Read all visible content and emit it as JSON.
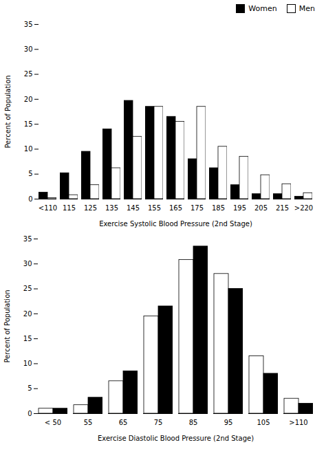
{
  "chart_data": [
    {
      "type": "bar",
      "categories": [
        "<110",
        "115",
        "125",
        "135",
        "145",
        "155",
        "165",
        "175",
        "185",
        "195",
        "205",
        "215",
        ">220"
      ],
      "series": [
        {
          "name": "Women",
          "color": "#000000",
          "values": [
            1.3,
            5.2,
            9.5,
            14.0,
            19.7,
            18.5,
            16.5,
            8.0,
            6.2,
            2.8,
            1.0,
            1.0,
            0.5
          ]
        },
        {
          "name": "Men",
          "color": "#ffffff",
          "values": [
            0.2,
            0.8,
            2.8,
            6.2,
            12.5,
            18.5,
            15.5,
            18.5,
            10.5,
            8.5,
            4.8,
            3.0,
            1.2
          ]
        }
      ],
      "xlabel": "Exercise Systolic Blood Pressure (2nd Stage)",
      "ylabel": "Percent of Population",
      "ylim": [
        0,
        35
      ],
      "yticks": [
        0,
        5,
        10,
        15,
        20,
        25,
        30,
        35
      ],
      "grid": false,
      "legend": "upper right"
    },
    {
      "type": "bar",
      "categories": [
        "< 50",
        "55",
        "65",
        "75",
        "85",
        "95",
        "105",
        ">110"
      ],
      "series": [
        {
          "name": "Men",
          "color": "#ffffff",
          "values": [
            1.0,
            1.7,
            6.5,
            19.5,
            30.8,
            28.0,
            11.5,
            3.0
          ]
        },
        {
          "name": "Women",
          "color": "#000000",
          "values": [
            1.0,
            3.2,
            8.5,
            21.5,
            33.5,
            25.0,
            8.0,
            2.0
          ]
        }
      ],
      "xlabel": "Exercise Diastolic Blood Pressure (2nd Stage)",
      "ylabel": "Percent of Population",
      "ylim": [
        0,
        35
      ],
      "yticks": [
        0,
        5,
        10,
        15,
        20,
        25,
        30,
        35
      ],
      "grid": false
    }
  ]
}
